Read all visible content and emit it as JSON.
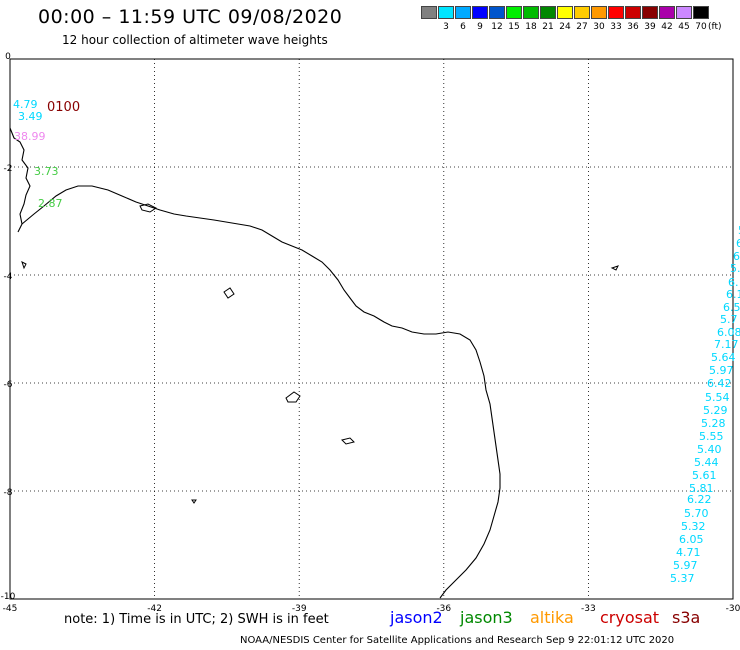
{
  "header": {
    "title": "00:00 – 11:59 UTC 09/08/2020",
    "subtitle": "12 hour collection of altimeter wave heights"
  },
  "legend": {
    "unit": "(ft)",
    "bins": [
      {
        "label": "",
        "color": "#808080"
      },
      {
        "label": "3",
        "color": "#00e5ff"
      },
      {
        "label": "6",
        "color": "#00aaff"
      },
      {
        "label": "9",
        "color": "#0000ff"
      },
      {
        "label": "12",
        "color": "#0055cc"
      },
      {
        "label": "15",
        "color": "#00ee00"
      },
      {
        "label": "18",
        "color": "#00bb00"
      },
      {
        "label": "21",
        "color": "#008800"
      },
      {
        "label": "24",
        "color": "#ffff00"
      },
      {
        "label": "27",
        "color": "#ffcc00"
      },
      {
        "label": "30",
        "color": "#ff9900"
      },
      {
        "label": "33",
        "color": "#ff0000"
      },
      {
        "label": "36",
        "color": "#cc0000"
      },
      {
        "label": "39",
        "color": "#880000"
      },
      {
        "label": "42",
        "color": "#aa00aa"
      },
      {
        "label": "45",
        "color": "#cc88ff"
      },
      {
        "label": "70",
        "color": "#000000"
      }
    ]
  },
  "map": {
    "x_ticks": [
      "-45",
      "-42",
      "-39",
      "-36",
      "-33",
      "-30"
    ],
    "y_ticks": [
      "0",
      "-2",
      "-4",
      "-6",
      "-8",
      "-10"
    ],
    "lon_range": [
      -45,
      -30
    ],
    "lat_range": [
      -10,
      0
    ]
  },
  "annotations": {
    "time_label": "0100",
    "time_label_color": "#880000"
  },
  "wave_labels": [
    {
      "text": "4.79",
      "color": "#00d8ff"
    },
    {
      "text": "3.49",
      "color": "#00d8ff"
    },
    {
      "text": "38.99",
      "color": "#ee88ee"
    },
    {
      "text": "3.73",
      "color": "#44cc44"
    },
    {
      "text": "2.87",
      "color": "#44cc44"
    },
    {
      "text": "5",
      "color": "#00d8ff"
    },
    {
      "text": "6",
      "color": "#00d8ff"
    },
    {
      "text": "6",
      "color": "#00d8ff"
    },
    {
      "text": "5.",
      "color": "#00d8ff"
    },
    {
      "text": "6.",
      "color": "#00d8ff"
    },
    {
      "text": "6.1",
      "color": "#00d8ff"
    },
    {
      "text": "6.5",
      "color": "#00d8ff"
    },
    {
      "text": "5.7",
      "color": "#00d8ff"
    },
    {
      "text": "6.08",
      "color": "#00d8ff"
    },
    {
      "text": "7.17",
      "color": "#00d8ff"
    },
    {
      "text": "5.64",
      "color": "#00d8ff"
    },
    {
      "text": "5.97",
      "color": "#00d8ff"
    },
    {
      "text": "6.42",
      "color": "#00d8ff"
    },
    {
      "text": "5.54",
      "color": "#00d8ff"
    },
    {
      "text": "5.29",
      "color": "#00d8ff"
    },
    {
      "text": "5.28",
      "color": "#00d8ff"
    },
    {
      "text": "5.55",
      "color": "#00d8ff"
    },
    {
      "text": "5.40",
      "color": "#00d8ff"
    },
    {
      "text": "5.44",
      "color": "#00d8ff"
    },
    {
      "text": "5.61",
      "color": "#00d8ff"
    },
    {
      "text": "5.81",
      "color": "#00d8ff"
    },
    {
      "text": "6.22",
      "color": "#00d8ff"
    },
    {
      "text": "5.70",
      "color": "#00d8ff"
    },
    {
      "text": "5.32",
      "color": "#00d8ff"
    },
    {
      "text": "6.05",
      "color": "#00d8ff"
    },
    {
      "text": "4.71",
      "color": "#00d8ff"
    },
    {
      "text": "5.97",
      "color": "#00d8ff"
    },
    {
      "text": "5.37",
      "color": "#00d8ff"
    }
  ],
  "note": "note:  1) Time is in UTC;  2) SWH is in feet",
  "satellites": [
    {
      "name": "jason2",
      "color": "#0000ff"
    },
    {
      "name": "jason3",
      "color": "#008800"
    },
    {
      "name": "altika",
      "color": "#ff9900"
    },
    {
      "name": "cryosat",
      "color": "#cc0000"
    },
    {
      "name": "s3a",
      "color": "#880000"
    }
  ],
  "footer": "NOAA/NESDIS Center for Satellite Applications and Research    Sep  9 22:01:12 UTC 2020"
}
